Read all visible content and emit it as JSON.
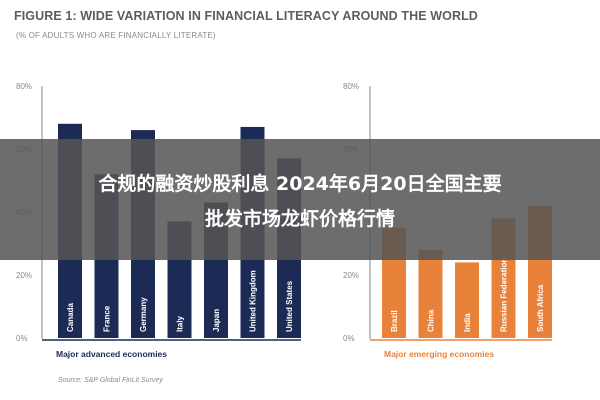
{
  "figure": {
    "title": "FIGURE 1: WIDE VARIATION IN FINANCIAL LITERACY AROUND THE WORLD",
    "subtitle": "(% OF ADULTS WHO ARE FINANCIALLY LITERATE)",
    "source": "Source: S&P Global FinLit Survey"
  },
  "overlay": {
    "line1": "合规的融资炒股利息 2024年6月20日全国主要",
    "line2": "批发市场龙虾价格行情"
  },
  "colors": {
    "advanced": "#1c2b55",
    "emerging": "#e8823b",
    "axis": "#8a8a8a",
    "text": "#5d5d5d"
  },
  "chart_data": [
    {
      "type": "bar",
      "xlabel": "Major advanced economies",
      "ylim": [
        0,
        80
      ],
      "ticks": [
        "0%",
        "20%",
        "40%",
        "60%",
        "80%"
      ],
      "categories": [
        "Canada",
        "France",
        "Germany",
        "Italy",
        "Japan",
        "United Kingdom",
        "United States"
      ],
      "values": [
        68,
        52,
        66,
        37,
        43,
        67,
        57
      ]
    },
    {
      "type": "bar",
      "xlabel": "Major emerging economies",
      "ylim": [
        0,
        80
      ],
      "ticks": [
        "0%",
        "20%",
        "40%",
        "60%",
        "80%"
      ],
      "categories": [
        "Brazil",
        "China",
        "India",
        "Russian Federation",
        "South Africa"
      ],
      "values": [
        35,
        28,
        24,
        38,
        42
      ]
    }
  ]
}
